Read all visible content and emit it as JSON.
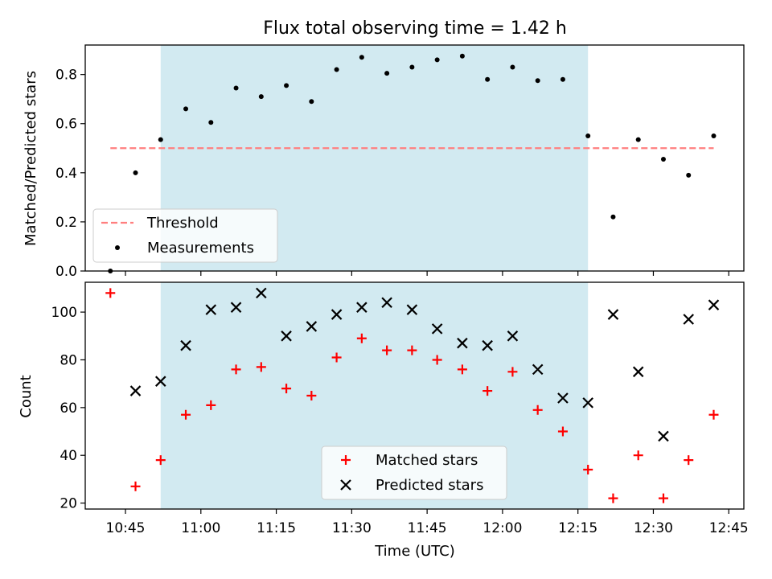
{
  "figure": {
    "title": "Flux total observing time = 1.42 h",
    "xlabel": "Time (UTC)",
    "shade_color": "#add8e6"
  },
  "chart_data": [
    {
      "type": "scatter",
      "ylabel": "Matched/Predicted stars",
      "ylim": [
        0,
        0.92
      ],
      "yticks": [
        0.0,
        0.2,
        0.4,
        0.6,
        0.8
      ],
      "ytick_labels": [
        "0.0",
        "0.2",
        "0.4",
        "0.6",
        "0.8"
      ],
      "xlim": [
        "10:37",
        "12:48"
      ],
      "shaded_interval": [
        "10:52",
        "12:17"
      ],
      "series": [
        {
          "name": "Threshold",
          "kind": "dashed-line",
          "color": "#ff7f7f",
          "x": [
            "10:42",
            "12:42"
          ],
          "values": [
            0.5,
            0.5
          ]
        },
        {
          "name": "Measurements",
          "kind": "dot",
          "color": "#000000",
          "x": [
            "10:42",
            "10:47",
            "10:52",
            "10:57",
            "11:02",
            "11:07",
            "11:12",
            "11:17",
            "11:22",
            "11:27",
            "11:32",
            "11:37",
            "11:42",
            "11:47",
            "11:52",
            "11:57",
            "12:02",
            "12:07",
            "12:12",
            "12:17",
            "12:22",
            "12:27",
            "12:32",
            "12:37",
            "12:42"
          ],
          "values": [
            0.0,
            0.4,
            0.535,
            0.66,
            0.605,
            0.745,
            0.71,
            0.755,
            0.69,
            0.82,
            0.87,
            0.805,
            0.83,
            0.86,
            0.875,
            0.78,
            0.83,
            0.775,
            0.78,
            0.55,
            0.22,
            0.535,
            0.455,
            0.39,
            0.55
          ]
        }
      ],
      "legend": {
        "position": "lower-left",
        "entries": [
          "Threshold",
          "Measurements"
        ]
      }
    },
    {
      "type": "scatter",
      "ylabel": "Count",
      "ylim": [
        17.5,
        112.5
      ],
      "yticks": [
        20,
        40,
        60,
        80,
        100
      ],
      "ytick_labels": [
        "20",
        "40",
        "60",
        "80",
        "100"
      ],
      "xlim": [
        "10:37",
        "12:48"
      ],
      "xticks": [
        "10:45",
        "11:00",
        "11:15",
        "11:30",
        "11:45",
        "12:00",
        "12:15",
        "12:30",
        "12:45"
      ],
      "xtick_labels": [
        "10:45",
        "11:00",
        "11:15",
        "11:30",
        "11:45",
        "12:00",
        "12:15",
        "12:30",
        "12:45"
      ],
      "shaded_interval": [
        "10:52",
        "12:17"
      ],
      "series": [
        {
          "name": "Matched stars",
          "kind": "plus",
          "color": "#ff0000",
          "x": [
            "10:42",
            "10:47",
            "10:52",
            "10:57",
            "11:02",
            "11:07",
            "11:12",
            "11:17",
            "11:22",
            "11:27",
            "11:32",
            "11:37",
            "11:42",
            "11:47",
            "11:52",
            "11:57",
            "12:02",
            "12:07",
            "12:12",
            "12:17",
            "12:22",
            "12:27",
            "12:32",
            "12:37",
            "12:42"
          ],
          "values": [
            108,
            27,
            38,
            57,
            61,
            76,
            77,
            68,
            65,
            81,
            89,
            84,
            84,
            80,
            76,
            67,
            75,
            59,
            50,
            34,
            22,
            40,
            22,
            38,
            57
          ]
        },
        {
          "name": "Predicted stars",
          "kind": "cross",
          "color": "#000000",
          "x": [
            "10:47",
            "10:52",
            "10:57",
            "11:02",
            "11:07",
            "11:12",
            "11:17",
            "11:22",
            "11:27",
            "11:32",
            "11:37",
            "11:42",
            "11:47",
            "11:52",
            "11:57",
            "12:02",
            "12:07",
            "12:12",
            "12:17",
            "12:22",
            "12:27",
            "12:32",
            "12:37",
            "12:42"
          ],
          "values": [
            67,
            71,
            86,
            101,
            102,
            108,
            90,
            94,
            99,
            102,
            104,
            101,
            93,
            87,
            86,
            90,
            76,
            64,
            62,
            99,
            75,
            48,
            97,
            103
          ]
        }
      ],
      "legend": {
        "position": "lower-center",
        "entries": [
          "Matched stars",
          "Predicted stars"
        ]
      }
    }
  ]
}
